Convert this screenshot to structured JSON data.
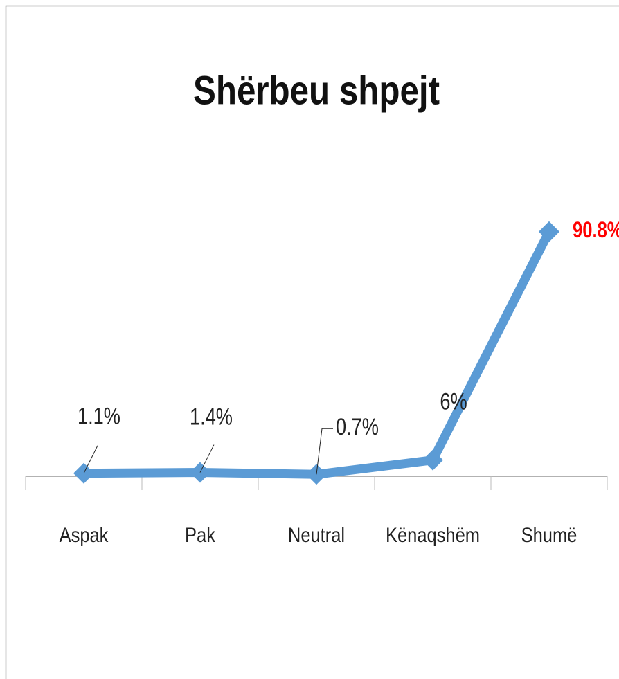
{
  "chart_data": {
    "type": "line",
    "title": "Shërbeu shpejt",
    "categories": [
      "Aspak",
      "Pak",
      "Neutral",
      "Kënaqshëm",
      "Shumë"
    ],
    "series": [
      {
        "color": "#5b9bd5",
        "values": [
          1.1,
          1.4,
          0.7,
          6,
          90.8
        ],
        "value_labels": [
          "1.1%",
          "1.4%",
          "0.7%",
          "6%",
          "90.8%"
        ],
        "label_colors": [
          "#222222",
          "#222222",
          "#222222",
          "#222222",
          "#ff0000"
        ]
      }
    ],
    "ylim": [
      0,
      100
    ]
  }
}
